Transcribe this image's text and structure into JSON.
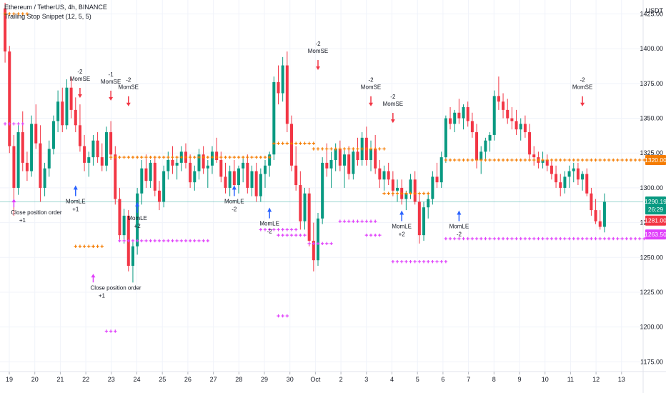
{
  "header": {
    "symbol_line": "Ethereum / TetherUS, 4h, BINANCE",
    "indicator_line": "Trailing Stop Snippet (12, 5, 5)"
  },
  "colors": {
    "up": "#26a69a",
    "down": "#ef5350",
    "up_dark": "#089981",
    "down_dark": "#f23645",
    "stop_orange": "#f57c00",
    "stop_magenta": "#e040fb",
    "entry_blue": "#2962ff",
    "grid": "#f0f3fa",
    "axis_text": "#131722"
  },
  "chart_data": {
    "type": "candlestick",
    "title": "Ethereum / TetherUS, 4h, BINANCE",
    "y_axis": {
      "unit_label": "USDT",
      "ticks": [
        1175.0,
        1200.0,
        1225.0,
        1250.0,
        1275.0,
        1300.0,
        1325.0,
        1350.0,
        1375.0,
        1400.0,
        1425.0
      ],
      "tick_labels": [
        "1175.00",
        "1200.00",
        "1225.00",
        "1250.00",
        "1275.00",
        "1300.00",
        "1325.00",
        "1350.00",
        "1375.00",
        "1400.00",
        "1425.00"
      ],
      "range": [
        1168,
        1435
      ]
    },
    "x_axis": {
      "labels": [
        "19",
        "20",
        "21",
        "22",
        "23",
        "24",
        "25",
        "26",
        "27",
        "28",
        "29",
        "30",
        "Oct",
        "2",
        "3",
        "4",
        "5",
        "6",
        "7",
        "8",
        "9",
        "10",
        "11",
        "12",
        "13"
      ]
    },
    "price_tags": [
      {
        "label": "1320.00",
        "value": 1320.0,
        "color": "#f57c00"
      },
      {
        "label": "1290.19",
        "value": 1290.19,
        "color": "#089981"
      },
      {
        "label": "26:29",
        "value": 1284.5,
        "color": "#089981"
      },
      {
        "label": "1281.00",
        "value": 1276.5,
        "color": "#f23645"
      },
      {
        "label": "1263.50",
        "value": 1266.5,
        "color": "#e040fb"
      }
    ],
    "candles": [
      [
        1429,
        1433,
        1390,
        1398
      ],
      [
        1398,
        1402,
        1325,
        1330
      ],
      [
        1330,
        1338,
        1280,
        1300
      ],
      [
        1300,
        1345,
        1295,
        1340
      ],
      [
        1340,
        1355,
        1312,
        1318
      ],
      [
        1318,
        1326,
        1305,
        1312
      ],
      [
        1312,
        1352,
        1308,
        1346
      ],
      [
        1346,
        1360,
        1328,
        1332
      ],
      [
        1332,
        1345,
        1290,
        1300
      ],
      [
        1300,
        1318,
        1294,
        1314
      ],
      [
        1314,
        1334,
        1308,
        1328
      ],
      [
        1328,
        1352,
        1324,
        1348
      ],
      [
        1348,
        1370,
        1340,
        1362
      ],
      [
        1362,
        1372,
        1340,
        1345
      ],
      [
        1345,
        1378,
        1342,
        1372
      ],
      [
        1372,
        1380,
        1350,
        1356
      ],
      [
        1356,
        1365,
        1340,
        1345
      ],
      [
        1345,
        1360,
        1326,
        1330
      ],
      [
        1330,
        1338,
        1312,
        1318
      ],
      [
        1318,
        1326,
        1308,
        1322
      ],
      [
        1322,
        1338,
        1316,
        1334
      ],
      [
        1334,
        1340,
        1318,
        1322
      ],
      [
        1322,
        1332,
        1312,
        1316
      ],
      [
        1316,
        1344,
        1312,
        1340
      ],
      [
        1340,
        1348,
        1320,
        1324
      ],
      [
        1324,
        1330,
        1288,
        1292
      ],
      [
        1292,
        1300,
        1262,
        1266
      ],
      [
        1266,
        1285,
        1260,
        1280
      ],
      [
        1280,
        1284,
        1240,
        1244
      ],
      [
        1244,
        1262,
        1232,
        1258
      ],
      [
        1258,
        1300,
        1252,
        1296
      ],
      [
        1296,
        1320,
        1288,
        1314
      ],
      [
        1314,
        1324,
        1300,
        1305
      ],
      [
        1305,
        1320,
        1300,
        1318
      ],
      [
        1318,
        1322,
        1294,
        1298
      ],
      [
        1298,
        1305,
        1284,
        1290
      ],
      [
        1290,
        1316,
        1286,
        1312
      ],
      [
        1312,
        1326,
        1306,
        1320
      ],
      [
        1320,
        1330,
        1310,
        1316
      ],
      [
        1316,
        1322,
        1306,
        1318
      ],
      [
        1318,
        1330,
        1312,
        1326
      ],
      [
        1326,
        1332,
        1314,
        1318
      ],
      [
        1318,
        1324,
        1300,
        1304
      ],
      [
        1304,
        1316,
        1298,
        1312
      ],
      [
        1312,
        1328,
        1306,
        1324
      ],
      [
        1324,
        1330,
        1310,
        1314
      ],
      [
        1314,
        1320,
        1300,
        1316
      ],
      [
        1316,
        1330,
        1310,
        1326
      ],
      [
        1326,
        1336,
        1318,
        1320
      ],
      [
        1320,
        1326,
        1304,
        1308
      ],
      [
        1308,
        1318,
        1296,
        1300
      ],
      [
        1300,
        1316,
        1294,
        1312
      ],
      [
        1312,
        1320,
        1298,
        1302
      ],
      [
        1302,
        1316,
        1296,
        1314
      ],
      [
        1314,
        1322,
        1304,
        1318
      ],
      [
        1318,
        1324,
        1296,
        1300
      ],
      [
        1300,
        1316,
        1294,
        1312
      ],
      [
        1312,
        1318,
        1290,
        1294
      ],
      [
        1294,
        1314,
        1290,
        1310
      ],
      [
        1310,
        1320,
        1300,
        1316
      ],
      [
        1316,
        1326,
        1308,
        1324
      ],
      [
        1324,
        1380,
        1320,
        1376
      ],
      [
        1376,
        1388,
        1360,
        1368
      ],
      [
        1368,
        1394,
        1362,
        1388
      ],
      [
        1388,
        1398,
        1340,
        1346
      ],
      [
        1346,
        1352,
        1312,
        1316
      ],
      [
        1316,
        1330,
        1298,
        1302
      ],
      [
        1302,
        1312,
        1270,
        1276
      ],
      [
        1276,
        1300,
        1270,
        1296
      ],
      [
        1296,
        1300,
        1258,
        1262
      ],
      [
        1262,
        1275,
        1240,
        1248
      ],
      [
        1248,
        1282,
        1244,
        1278
      ],
      [
        1278,
        1322,
        1274,
        1318
      ],
      [
        1318,
        1332,
        1308,
        1314
      ],
      [
        1314,
        1326,
        1300,
        1320
      ],
      [
        1320,
        1332,
        1312,
        1328
      ],
      [
        1328,
        1334,
        1312,
        1316
      ],
      [
        1316,
        1328,
        1300,
        1324
      ],
      [
        1324,
        1330,
        1306,
        1310
      ],
      [
        1310,
        1328,
        1306,
        1326
      ],
      [
        1326,
        1336,
        1316,
        1320
      ],
      [
        1320,
        1340,
        1316,
        1336
      ],
      [
        1336,
        1344,
        1316,
        1320
      ],
      [
        1320,
        1334,
        1312,
        1328
      ],
      [
        1328,
        1338,
        1310,
        1314
      ],
      [
        1314,
        1320,
        1300,
        1306
      ],
      [
        1306,
        1316,
        1298,
        1312
      ],
      [
        1312,
        1318,
        1302,
        1306
      ],
      [
        1306,
        1312,
        1294,
        1298
      ],
      [
        1298,
        1306,
        1290,
        1300
      ],
      [
        1300,
        1306,
        1288,
        1292
      ],
      [
        1292,
        1298,
        1284,
        1296
      ],
      [
        1296,
        1310,
        1292,
        1306
      ],
      [
        1306,
        1312,
        1288,
        1290
      ],
      [
        1290,
        1296,
        1260,
        1266
      ],
      [
        1266,
        1290,
        1262,
        1286
      ],
      [
        1286,
        1296,
        1278,
        1292
      ],
      [
        1292,
        1312,
        1288,
        1308
      ],
      [
        1308,
        1318,
        1300,
        1304
      ],
      [
        1304,
        1326,
        1300,
        1322
      ],
      [
        1322,
        1352,
        1318,
        1350
      ],
      [
        1350,
        1358,
        1342,
        1346
      ],
      [
        1346,
        1356,
        1340,
        1354
      ],
      [
        1354,
        1364,
        1346,
        1350
      ],
      [
        1350,
        1360,
        1342,
        1358
      ],
      [
        1358,
        1362,
        1344,
        1348
      ],
      [
        1348,
        1354,
        1336,
        1340
      ],
      [
        1340,
        1346,
        1314,
        1320
      ],
      [
        1320,
        1330,
        1310,
        1326
      ],
      [
        1326,
        1336,
        1320,
        1334
      ],
      [
        1334,
        1340,
        1326,
        1338
      ],
      [
        1338,
        1370,
        1334,
        1366
      ],
      [
        1366,
        1380,
        1356,
        1362
      ],
      [
        1362,
        1368,
        1350,
        1356
      ],
      [
        1356,
        1364,
        1346,
        1350
      ],
      [
        1350,
        1358,
        1342,
        1348
      ],
      [
        1348,
        1356,
        1338,
        1342
      ],
      [
        1342,
        1350,
        1334,
        1346
      ],
      [
        1346,
        1352,
        1336,
        1340
      ],
      [
        1340,
        1346,
        1320,
        1324
      ],
      [
        1324,
        1330,
        1316,
        1322
      ],
      [
        1322,
        1326,
        1314,
        1318
      ],
      [
        1318,
        1326,
        1314,
        1320
      ],
      [
        1320,
        1324,
        1312,
        1316
      ],
      [
        1316,
        1320,
        1306,
        1310
      ],
      [
        1310,
        1316,
        1300,
        1304
      ],
      [
        1304,
        1310,
        1294,
        1300
      ],
      [
        1300,
        1312,
        1296,
        1308
      ],
      [
        1308,
        1316,
        1300,
        1312
      ],
      [
        1312,
        1318,
        1304,
        1314
      ],
      [
        1314,
        1318,
        1302,
        1306
      ],
      [
        1306,
        1312,
        1298,
        1310
      ],
      [
        1310,
        1314,
        1294,
        1296
      ],
      [
        1296,
        1300,
        1280,
        1284
      ],
      [
        1284,
        1292,
        1274,
        1276
      ],
      [
        1276,
        1284,
        1270,
        1272
      ],
      [
        1272,
        1296,
        1268,
        1290
      ]
    ],
    "annotations": [
      {
        "text": "Close position order",
        "sub": "+1",
        "bar": 2,
        "price": 1284
      },
      {
        "text": "Close position order",
        "sub": "+1",
        "bar": 20,
        "price": 1230
      },
      {
        "text": "MomLE",
        "sub": "+1",
        "bar": 16,
        "price": 1290
      },
      {
        "text": "MomLE",
        "sub": "+2",
        "bar": 30,
        "price": 1278
      },
      {
        "text": "MomLE",
        "sub": "-2",
        "bar": 52,
        "price": 1290
      },
      {
        "text": "MomLE",
        "sub": "-2",
        "bar": 60,
        "price": 1274
      },
      {
        "text": "MomLE",
        "sub": "+2",
        "bar": 90,
        "price": 1272
      },
      {
        "text": "MomLE",
        "sub": "-2",
        "bar": 103,
        "price": 1272
      },
      {
        "text": "MomSE",
        "sub": "-2",
        "bar": 17,
        "price": 1378
      },
      {
        "text": "MomSE",
        "sub": "-1",
        "bar": 24,
        "price": 1376
      },
      {
        "text": "MomSE",
        "sub": "-2",
        "bar": 28,
        "price": 1372
      },
      {
        "text": "MomSE",
        "sub": "-2",
        "bar": 71,
        "price": 1398
      },
      {
        "text": "MomSE",
        "sub": "-2",
        "bar": 83,
        "price": 1372
      },
      {
        "text": "MomSE",
        "sub": "-2",
        "bar": 88,
        "price": 1360
      },
      {
        "text": "MomSE",
        "sub": "-2",
        "bar": 131,
        "price": 1372
      }
    ]
  }
}
